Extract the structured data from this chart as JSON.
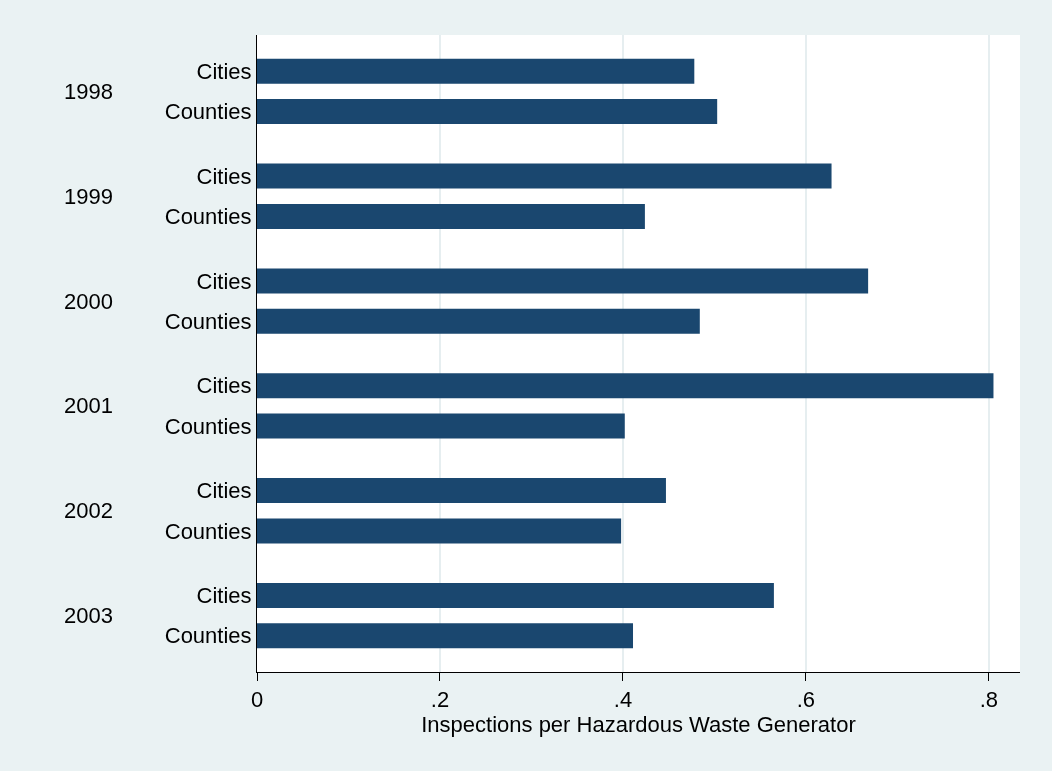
{
  "chart_data": {
    "type": "bar",
    "orientation": "horizontal",
    "categories": [
      "Cities",
      "Counties",
      "Cities",
      "Counties",
      "Cities",
      "Counties",
      "Cities",
      "Counties",
      "Cities",
      "Counties",
      "Cities",
      "Counties"
    ],
    "values": [
      0.478,
      0.503,
      0.628,
      0.424,
      0.668,
      0.484,
      0.805,
      0.402,
      0.447,
      0.398,
      0.565,
      0.411
    ],
    "color": "#1a476f",
    "annotations": [
      "1998",
      "1999",
      "2000",
      "2001",
      "2002",
      "2003"
    ],
    "xlabel": "Inspections per Hazardous Waste Generator",
    "xlim": [
      0,
      0.834
    ],
    "xticks": [
      0,
      {
        "value": 0.2,
        "label": ".2"
      },
      {
        "value": 0.4,
        "label": ".4"
      },
      {
        "value": 0.6,
        "label": ".6"
      },
      {
        "value": 0.8,
        "label": ".8"
      }
    ],
    "grid": "x"
  }
}
